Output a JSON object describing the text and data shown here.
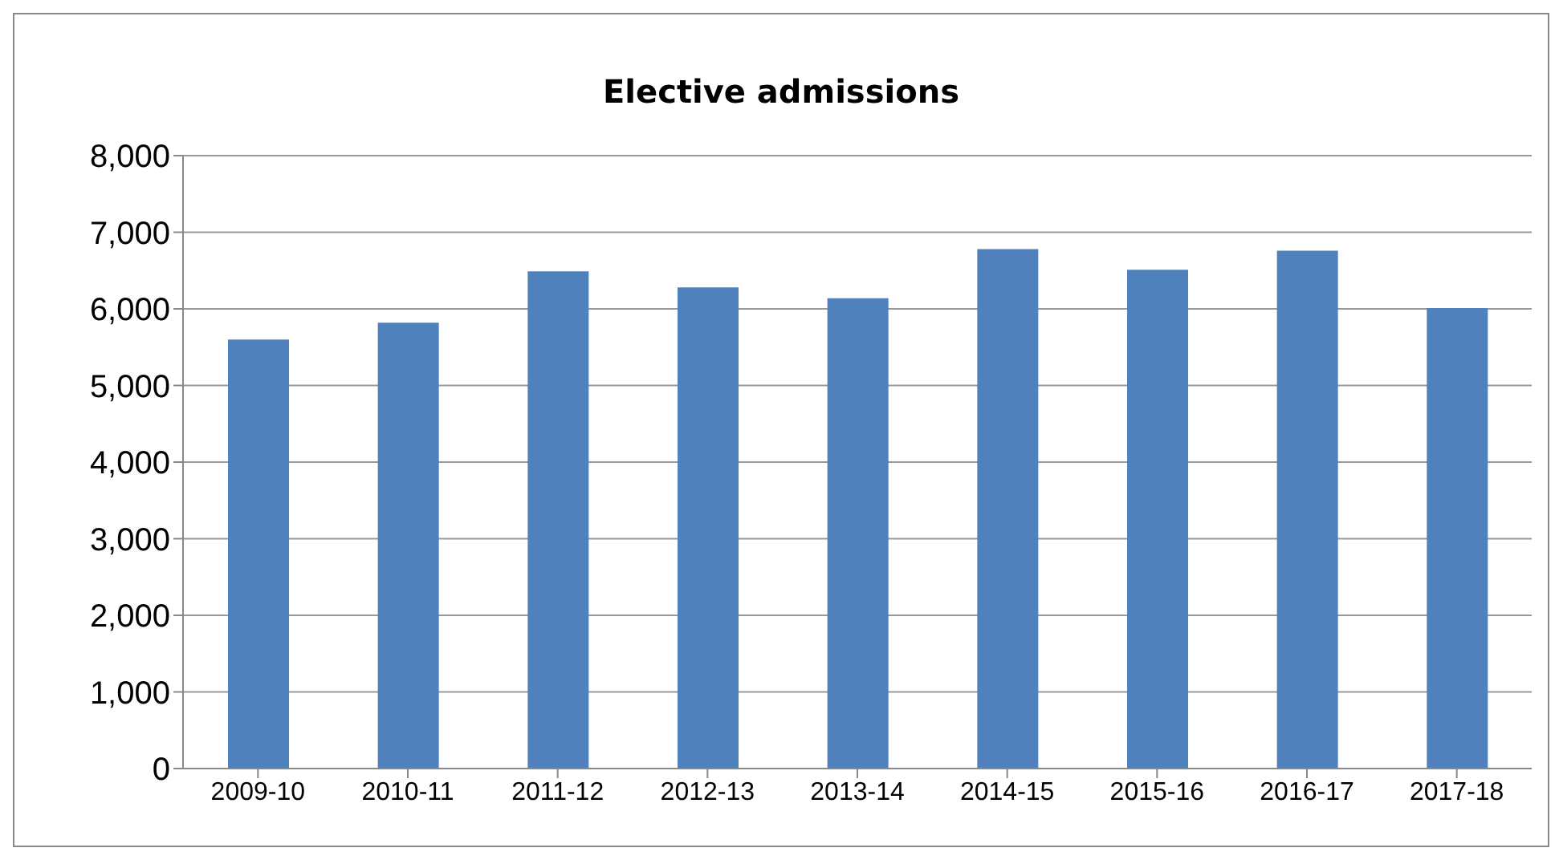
{
  "chart_data": {
    "type": "bar",
    "title": "Elective admissions",
    "categories": [
      "2009-10",
      "2010-11",
      "2011-12",
      "2012-13",
      "2013-14",
      "2014-15",
      "2015-16",
      "2016-17",
      "2017-18"
    ],
    "values": [
      5600,
      5820,
      6490,
      6280,
      6140,
      6780,
      6510,
      6760,
      6010
    ],
    "color": "#4f81bd",
    "ylim": [
      0,
      8000
    ],
    "yticks": [
      0,
      {
        "value": 1000,
        "label": "1,000"
      },
      {
        "value": 2000,
        "label": "2,000"
      },
      {
        "value": 3000,
        "label": "3,000"
      },
      {
        "value": 4000,
        "label": "4,000"
      },
      {
        "value": 5000,
        "label": "5,000"
      },
      {
        "value": 6000,
        "label": "6,000"
      },
      {
        "value": 7000,
        "label": "7,000"
      },
      {
        "value": 8000,
        "label": "8,000"
      }
    ],
    "grid": "y"
  }
}
